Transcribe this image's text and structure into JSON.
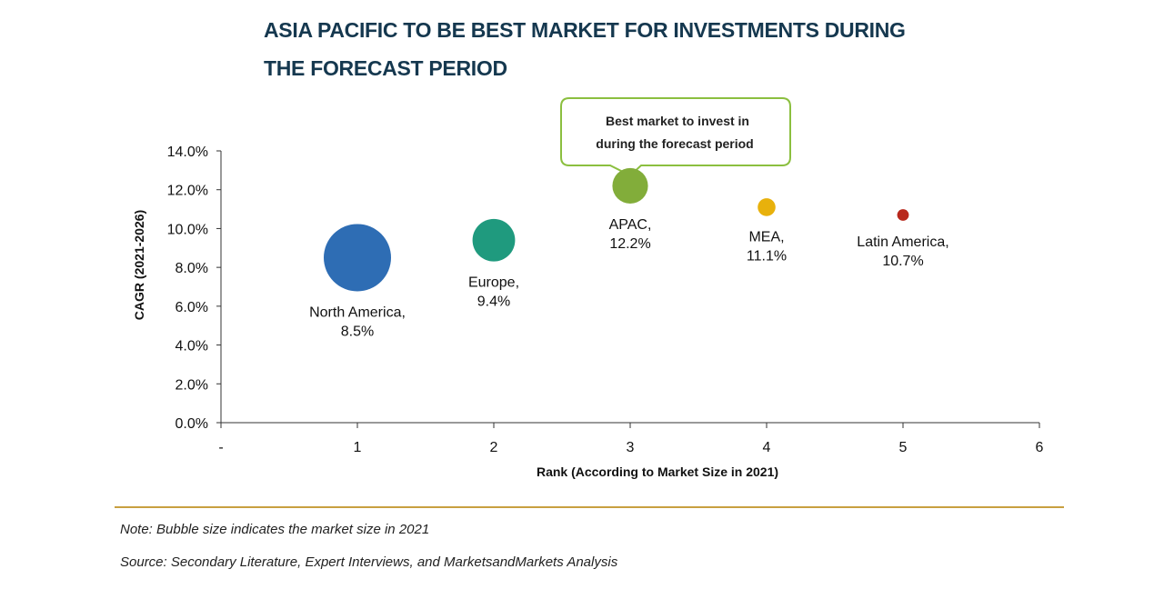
{
  "colors": {
    "title": "#15384f",
    "axis": "#333333",
    "callout_border": "#8bbf3f",
    "rule": "#c8a040"
  },
  "header": {
    "title_line1": "ASIA PACIFIC TO BE BEST MARKET FOR INVESTMENTS DURING",
    "title_line2": "THE FORECAST PERIOD"
  },
  "chart_data": {
    "type": "scatter",
    "xlabel": "Rank (According to Market Size in 2021)",
    "ylabel": "CAGR (2021-2026)",
    "xlim": [
      0,
      6
    ],
    "ylim": [
      0,
      14
    ],
    "x_ticks": [
      "-",
      "1",
      "2",
      "3",
      "4",
      "5",
      "6"
    ],
    "y_ticks": [
      "0.0%",
      "2.0%",
      "4.0%",
      "6.0%",
      "8.0%",
      "10.0%",
      "12.0%",
      "14.0%"
    ],
    "grid": false,
    "legend": "none",
    "bubbles": [
      {
        "label": "North America,",
        "value_label": "8.5%",
        "x": 1,
        "y": 8.5,
        "relative_size": 1.0,
        "color": "#2e6db4"
      },
      {
        "label": "Europe,",
        "value_label": "9.4%",
        "x": 2,
        "y": 9.4,
        "relative_size": 0.4,
        "color": "#1f9a7e"
      },
      {
        "label": "APAC,",
        "value_label": "12.2%",
        "x": 3,
        "y": 12.2,
        "relative_size": 0.28,
        "color": "#82ad3a"
      },
      {
        "label": "MEA,",
        "value_label": "11.1%",
        "x": 4,
        "y": 11.1,
        "relative_size": 0.07,
        "color": "#e8b10c"
      },
      {
        "label": "Latin America,",
        "value_label": "10.7%",
        "x": 5,
        "y": 10.7,
        "relative_size": 0.03,
        "color": "#b8281c"
      }
    ],
    "annotation": {
      "line1": "Best market to invest in",
      "line2": "during the forecast period",
      "points_to_x": 3
    }
  },
  "footer": {
    "note": "Note: Bubble size indicates the market size in 2021",
    "source": "Source: Secondary Literature, Expert Interviews, and MarketsandMarkets Analysis"
  }
}
